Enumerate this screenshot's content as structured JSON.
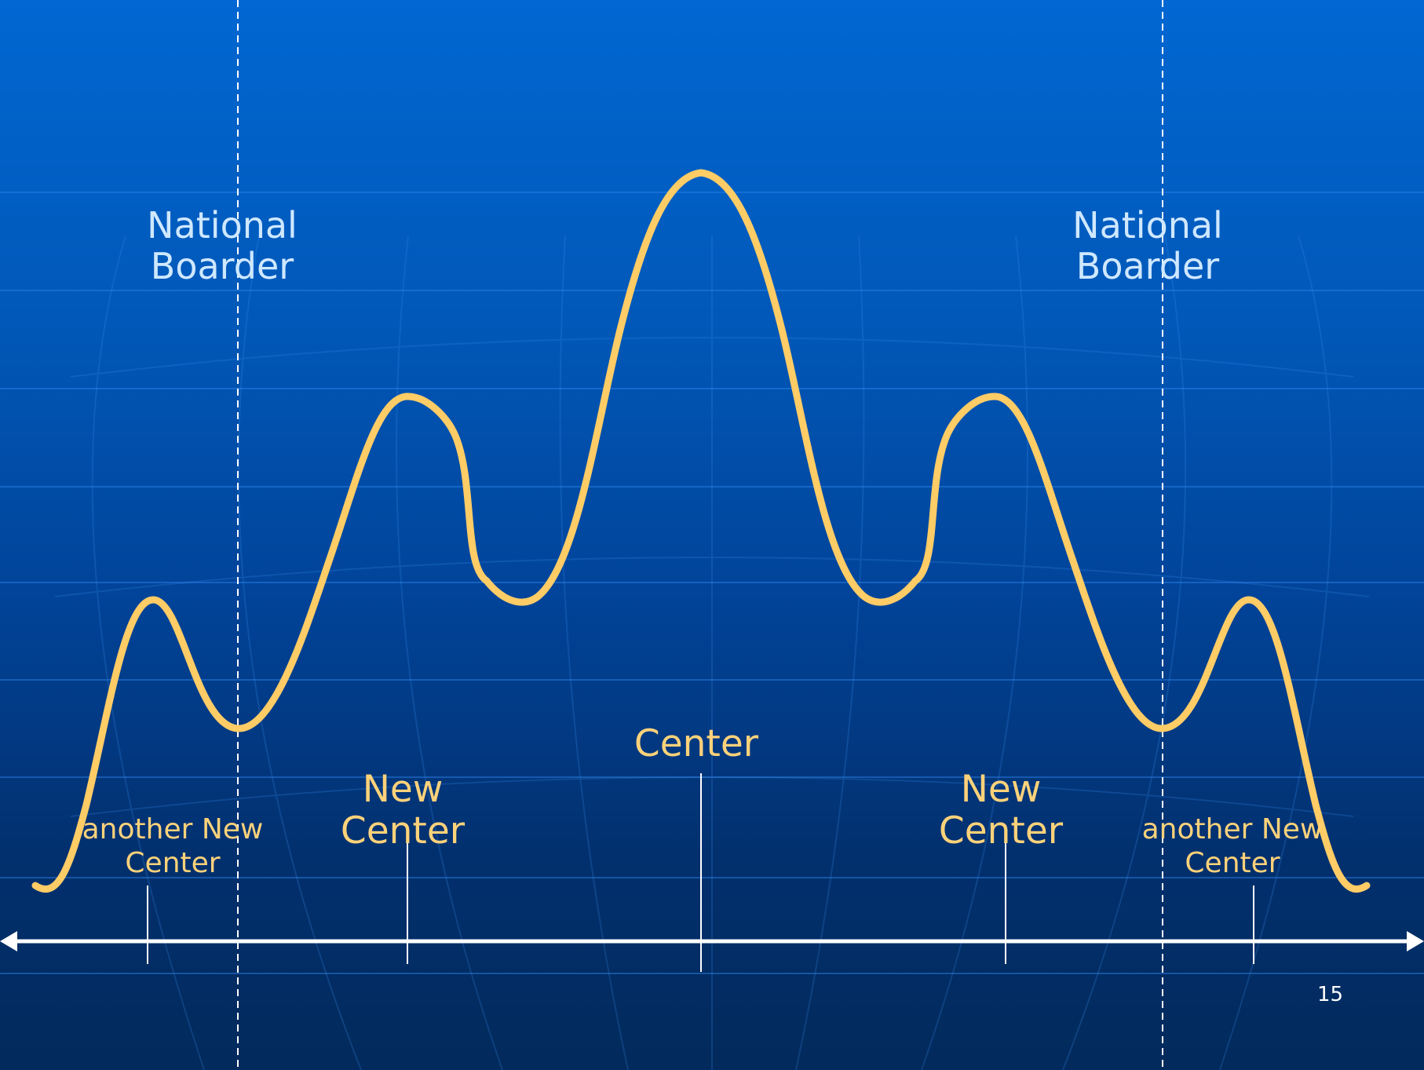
{
  "labels": {
    "border_left": [
      "National",
      "Boarder"
    ],
    "border_right": [
      "National",
      "Boarder"
    ],
    "center": "Center",
    "new_center_left": [
      "New",
      "Center"
    ],
    "new_center_right": [
      "New",
      "Center"
    ],
    "another_left": [
      "another New",
      "Center"
    ],
    "another_right": [
      "another New",
      "Center"
    ]
  },
  "page_number": "15",
  "colors": {
    "curve": "#ffcc66",
    "axis": "#ffffff",
    "border_line": "#ffffff",
    "border_text": "#cfe8ff",
    "label_text": "#ffd27a"
  }
}
